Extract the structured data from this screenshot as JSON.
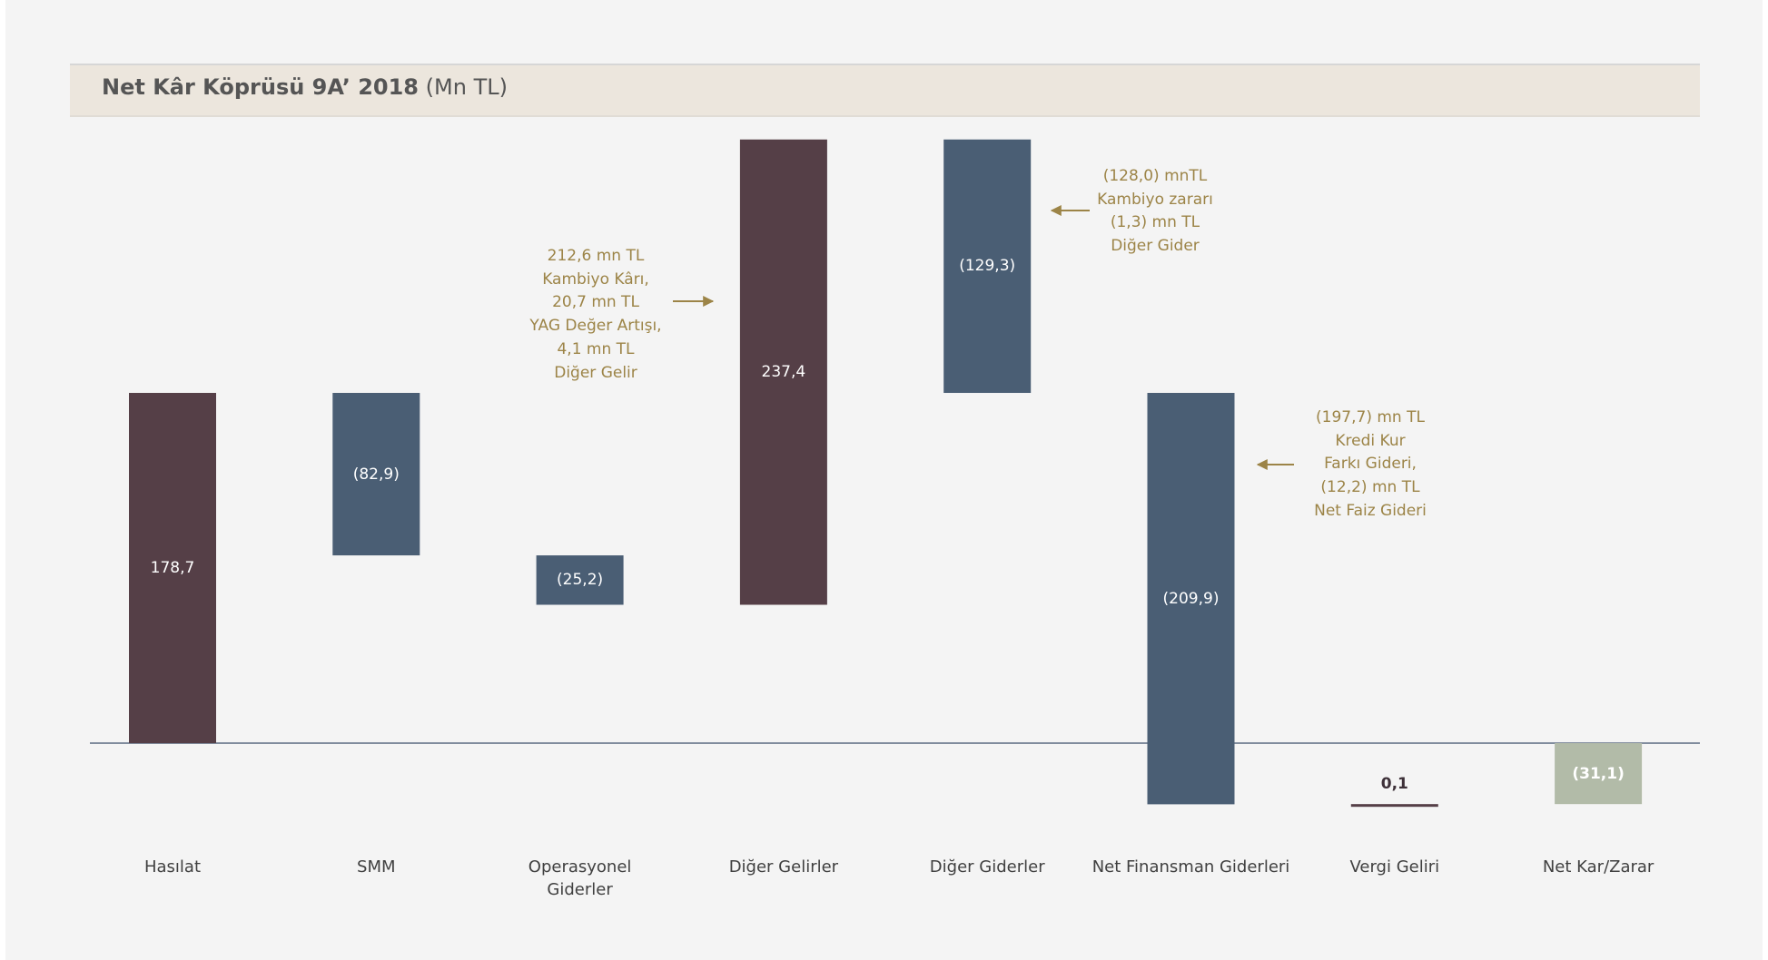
{
  "chart_data": {
    "type": "waterfall",
    "title": "Net Kâr Köprüsü 9A’ 2018",
    "unit": "(Mn TL)",
    "categories": [
      "Hasılat",
      "SMM",
      "Operasyonel\nGiderler",
      "Diğer Gelirler",
      "Diğer Giderler",
      "Net Finansman Giderleri",
      "Vergi Geliri",
      "Net Kar/Zarar"
    ],
    "values": [
      178.7,
      -82.9,
      -25.2,
      237.4,
      -129.3,
      -209.9,
      0.1,
      -31.1
    ],
    "value_labels": [
      "178,7",
      "(82,9)",
      "(25,2)",
      "237,4",
      "(129,3)",
      "(209,9)",
      "0,1",
      "(31,1)"
    ],
    "measure": [
      "relative",
      "relative",
      "relative",
      "relative",
      "relative",
      "relative",
      "relative",
      "total"
    ],
    "colors": {
      "increase": "#553f47",
      "decrease": "#4a5e74",
      "total": "#b2bba8"
    },
    "ylim": [
      -60,
      320
    ],
    "annotations": [
      {
        "category": 3,
        "text": "212,6 mn TL\nKambiyo Kârı,\n20,7 mn TL\nYAG Değer Artışı,\n4,1 mn TL\nDiğer Gelir"
      },
      {
        "category": 4,
        "text": "(128,0) mnTL\nKambiyo zararı\n(1,3) mn TL\nDiğer Gider"
      },
      {
        "category": 5,
        "text": "(197,7) mn TL\nKredi Kur\nFarkı Gideri,\n(12,2) mn TL\nNet Faiz Gideri"
      }
    ]
  }
}
